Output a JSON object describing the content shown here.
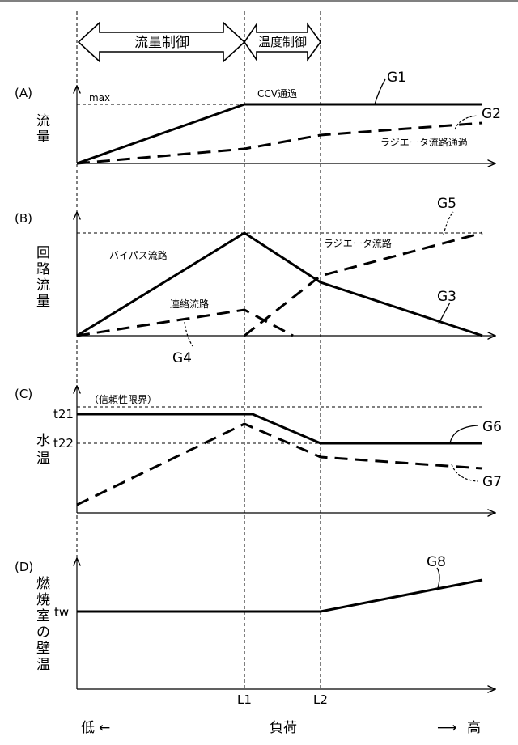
{
  "chart_data": [
    {
      "type": "line",
      "panel": "(A)",
      "ylabel": "流量",
      "ref_label": "max",
      "annotation": "CCV通過",
      "x": [
        "0",
        "L1",
        "L2",
        "end"
      ],
      "series": [
        {
          "name": "G1",
          "style": "solid",
          "values": [
            0,
            1.0,
            1.0,
            1.0
          ]
        },
        {
          "name": "G2",
          "style": "dashed",
          "label": "ラジエータ流路通過",
          "values": [
            0,
            0.24,
            0.44,
            0.65
          ]
        }
      ]
    },
    {
      "type": "line",
      "panel": "(B)",
      "ylabel": "回路流量",
      "series": [
        {
          "name": "G3",
          "style": "solid",
          "label": "バイパス流路",
          "x": [
            "0",
            "L1",
            "L2",
            "end"
          ],
          "values": [
            0,
            1.0,
            0.52,
            0
          ]
        },
        {
          "name": "G4",
          "style": "dashed",
          "label": "連絡流路",
          "x": [
            "0",
            "L1",
            "L1+"
          ],
          "values": [
            0,
            0.24,
            0
          ]
        },
        {
          "name": "G5",
          "style": "dashed",
          "label": "ラジエータ流路",
          "x": [
            "L1",
            "L2",
            "end"
          ],
          "values": [
            0,
            0.58,
            1.0
          ]
        }
      ]
    },
    {
      "type": "line",
      "panel": "(C)",
      "ylabel": "水温",
      "ref_label": "（信頼性限界）",
      "yticks": [
        "t21",
        "t22"
      ],
      "series": [
        {
          "name": "G6",
          "style": "solid",
          "x": [
            "0",
            "L1",
            "L2",
            "end"
          ],
          "values": [
            "t21",
            "t21",
            "t22",
            "t22"
          ]
        },
        {
          "name": "G7",
          "style": "dashed",
          "x": [
            "0",
            "L1",
            "L2",
            "end"
          ],
          "values": [
            0.08,
            0.88,
            0.55,
            0.47
          ]
        }
      ]
    },
    {
      "type": "line",
      "panel": "(D)",
      "ylabel": "燃焼室の壁温",
      "yticks": [
        "tw"
      ],
      "series": [
        {
          "name": "G8",
          "style": "solid",
          "x": [
            "0",
            "L1",
            "L2",
            "end"
          ],
          "values": [
            "tw",
            "tw",
            "tw",
            1.0
          ]
        }
      ]
    }
  ],
  "top_bar": {
    "flow_control": "流量制御",
    "temp_control": "温度制御"
  },
  "xaxis": {
    "tick_L1": "L1",
    "tick_L2": "L2",
    "label": "負荷",
    "low": "低",
    "high": "高",
    "arrow_left": "←",
    "arrow_right": "⟶"
  },
  "panelA": {
    "tag": "(A)",
    "ylabel_1": "流",
    "ylabel_2": "量",
    "ref": "max",
    "ccv": "CCV通過",
    "g1": "G1",
    "g2": "G2",
    "radiator": "ラジエータ流路通過"
  },
  "panelB": {
    "tag": "(B)",
    "ylabel_1": "回",
    "ylabel_2": "路",
    "ylabel_3": "流",
    "ylabel_4": "量",
    "bypass": "バイパス流路",
    "link": "連絡流路",
    "radiator": "ラジエータ流路",
    "g3": "G3",
    "g4": "G4",
    "g5": "G5"
  },
  "panelC": {
    "tag": "(C)",
    "ylabel_1": "水",
    "ylabel_2": "温",
    "limit": "（信頼性限界）",
    "t21": "t21",
    "t22": "t22",
    "g6": "G6",
    "g7": "G7"
  },
  "panelD": {
    "tag": "(D)",
    "ylabel_1": "燃",
    "ylabel_2": "焼",
    "ylabel_3": "室",
    "ylabel_4": "の",
    "ylabel_5": "壁",
    "ylabel_6": "温",
    "tw": "tw",
    "g8": "G8"
  }
}
